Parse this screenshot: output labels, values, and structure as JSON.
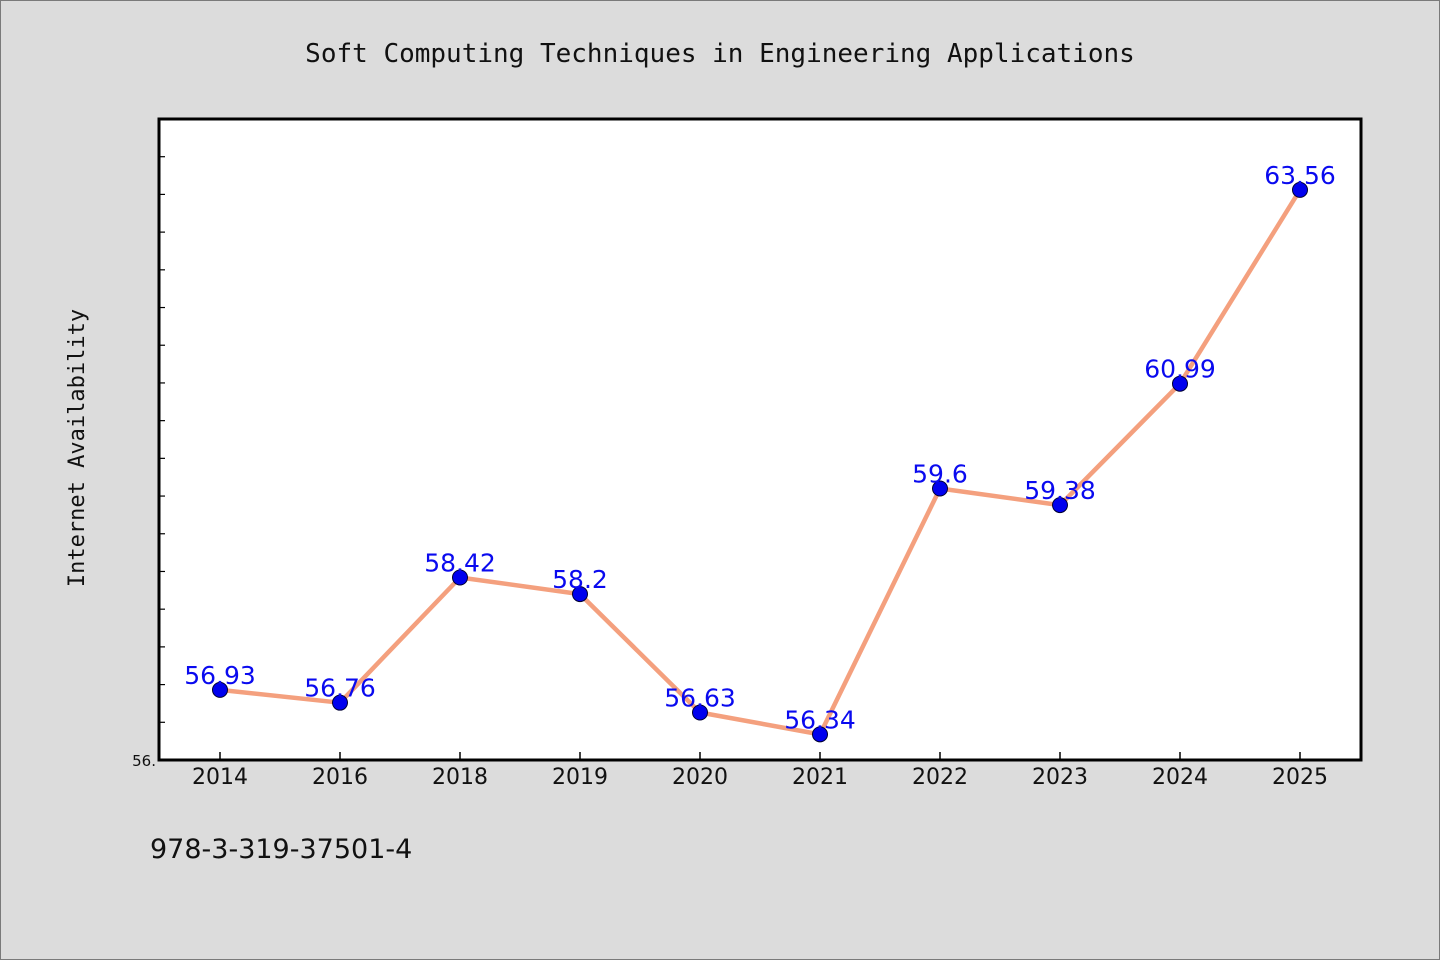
{
  "chart_data": {
    "type": "line",
    "title": "Soft Computing Techniques in Engineering Applications",
    "xlabel": "",
    "ylabel": "Internet Availability",
    "categories": [
      "2014",
      "2016",
      "2018",
      "2019",
      "2020",
      "2021",
      "2022",
      "2023",
      "2024",
      "2025"
    ],
    "series": [
      {
        "values": [
          56.93,
          56.76,
          58.42,
          58.2,
          56.63,
          56.34,
          59.6,
          59.38,
          60.99,
          63.56
        ]
      }
    ],
    "data_labels": [
      "56.93",
      "56.76",
      "58.42",
      "58.2",
      "56.63",
      "56.34",
      "59.6",
      "59.38",
      "60.99",
      "63.56"
    ],
    "ylim": [
      56.0,
      64.5
    ],
    "y_tick_label": "56.",
    "grid": false,
    "line_color": "#f4a07e",
    "marker_color": "#0000ee",
    "label_color": "#0a0aef"
  },
  "footer": {
    "isbn": "978-3-319-37501-4"
  }
}
